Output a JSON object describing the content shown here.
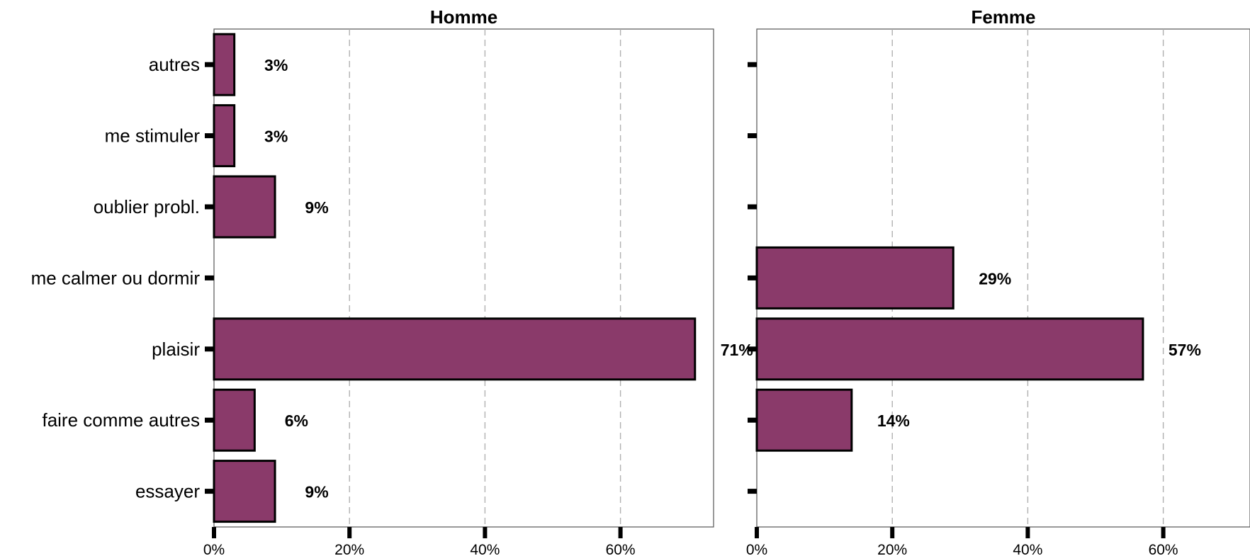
{
  "chart_data": {
    "type": "bar",
    "orientation": "horizontal",
    "categories": [
      "autres",
      "me stimuler",
      "oublier probl.",
      "me calmer ou dormir",
      "plaisir",
      "faire comme autres",
      "essayer"
    ],
    "xlim": [
      0,
      74
    ],
    "xticks": [
      0,
      20,
      40,
      60
    ],
    "xtick_labels": [
      "0%",
      "20%",
      "40%",
      "60%"
    ],
    "grid": "vertical dashed",
    "bar_color": "#8a3a6a",
    "panels": [
      {
        "title": "Homme",
        "values": [
          3,
          3,
          9,
          0,
          71,
          6,
          9
        ],
        "value_labels": [
          "3%",
          "3%",
          "9%",
          "",
          "71%",
          "6%",
          "9%"
        ]
      },
      {
        "title": "Femme",
        "values": [
          0,
          0,
          0,
          29,
          57,
          14,
          0
        ],
        "value_labels": [
          "",
          "",
          "",
          "29%",
          "57%",
          "14%",
          ""
        ]
      }
    ]
  }
}
